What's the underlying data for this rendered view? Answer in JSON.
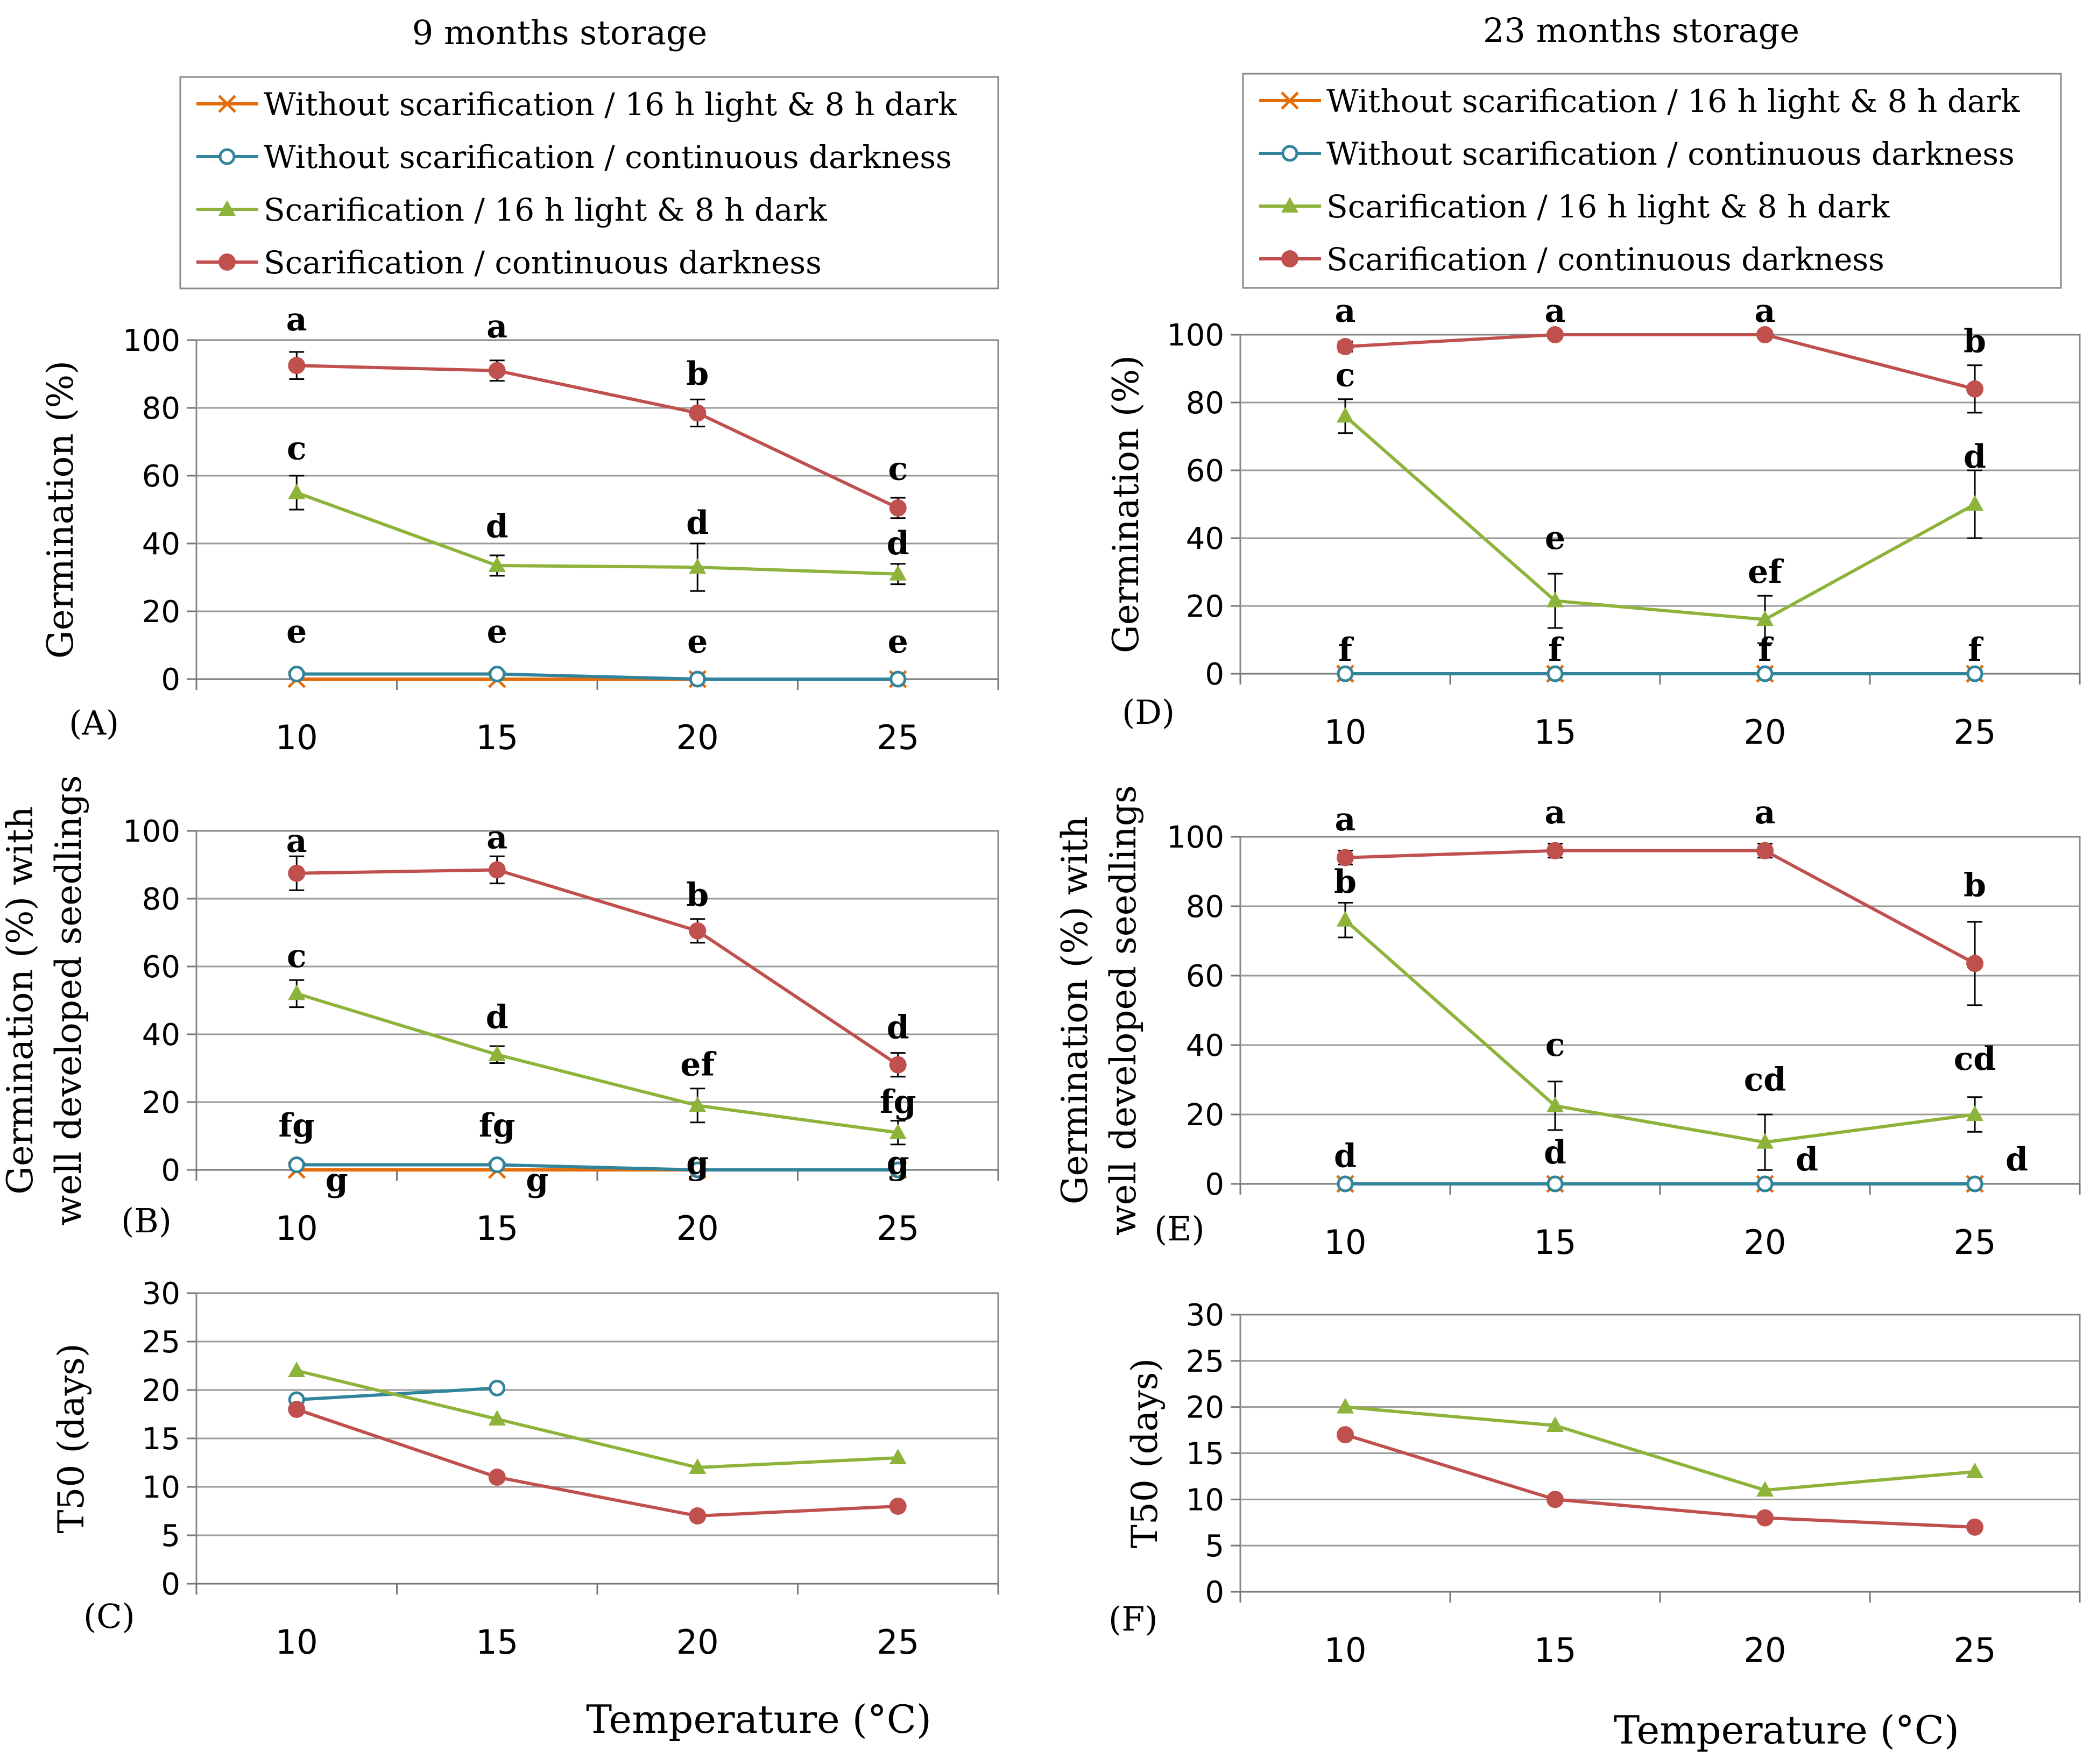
{
  "figure": {
    "left_column_title": "9 months storage",
    "right_column_title": "23 months storage",
    "x_title": "Temperature (°C)"
  },
  "legend": [
    {
      "key": "ws_light",
      "label": "Without scarification / 16 h light & 8 h dark",
      "color": "#E36C09",
      "marker": "cross"
    },
    {
      "key": "ws_dark",
      "label": "Without scarification / continuous darkness",
      "color": "#31849B",
      "marker": "open-circle"
    },
    {
      "key": "s_light",
      "label": "Scarification / 16 h light & 8 h dark",
      "color": "#8DB33A",
      "marker": "triangle"
    },
    {
      "key": "s_dark",
      "label": "Scarification / continuous darkness",
      "color": "#C0504D",
      "marker": "filled-circle"
    }
  ],
  "chart_data": [
    {
      "id": "A",
      "panel_label": "(A)",
      "type": "line",
      "categories": [
        "10",
        "15",
        "20",
        "25"
      ],
      "ylabel": "Germination (%)",
      "ylim": [
        0,
        100
      ],
      "yticks": [
        0,
        20,
        40,
        60,
        80,
        100
      ],
      "series": [
        {
          "key": "ws_light",
          "values": [
            0,
            0,
            0,
            0
          ],
          "errors": null
        },
        {
          "key": "ws_dark",
          "values": [
            1.5,
            1.5,
            0,
            0
          ],
          "errors": null
        },
        {
          "key": "s_light",
          "values": [
            55,
            33.5,
            33,
            31
          ],
          "errors": [
            5,
            3,
            7,
            3
          ]
        },
        {
          "key": "s_dark",
          "values": [
            92.5,
            91,
            78.5,
            50.5
          ],
          "errors": [
            4,
            3,
            4,
            3
          ]
        }
      ],
      "letters": [
        {
          "text": "a",
          "x": "10",
          "y": 106
        },
        {
          "text": "a",
          "x": "15",
          "y": 104
        },
        {
          "text": "b",
          "x": "20",
          "y": 90
        },
        {
          "text": "c",
          "x": "25",
          "y": 62
        },
        {
          "text": "c",
          "x": "10",
          "y": 68
        },
        {
          "text": "d",
          "x": "15",
          "y": 45
        },
        {
          "text": "d",
          "x": "20",
          "y": 46
        },
        {
          "text": "d",
          "x": "25",
          "y": 40
        },
        {
          "text": "e",
          "x": "10",
          "y": 14
        },
        {
          "text": "e",
          "x": "15",
          "y": 14
        },
        {
          "text": "e",
          "x": "20",
          "y": 11
        },
        {
          "text": "e",
          "x": "25",
          "y": 11
        }
      ]
    },
    {
      "id": "B",
      "panel_label": "(B)",
      "type": "line",
      "categories": [
        "10",
        "15",
        "20",
        "25"
      ],
      "ylabel": [
        "Germination (%) with",
        "well developed seedlings"
      ],
      "ylim": [
        0,
        100
      ],
      "yticks": [
        0,
        20,
        40,
        60,
        80,
        100
      ],
      "series": [
        {
          "key": "ws_light",
          "values": [
            0,
            0,
            0,
            0
          ],
          "errors": null
        },
        {
          "key": "ws_dark",
          "values": [
            1.5,
            1.5,
            0,
            0
          ],
          "errors": null
        },
        {
          "key": "s_light",
          "values": [
            52,
            34,
            19,
            11
          ],
          "errors": [
            4,
            2.5,
            5,
            3.5
          ]
        },
        {
          "key": "s_dark",
          "values": [
            87.5,
            88.5,
            70.5,
            31
          ],
          "errors": [
            5,
            4,
            3.5,
            3.5
          ]
        }
      ],
      "letters": [
        {
          "text": "a",
          "x": "10",
          "y": 97
        },
        {
          "text": "a",
          "x": "15",
          "y": 98
        },
        {
          "text": "b",
          "x": "20",
          "y": 81
        },
        {
          "text": "d",
          "x": "25",
          "y": 42
        },
        {
          "text": "c",
          "x": "10",
          "y": 63
        },
        {
          "text": "d",
          "x": "15",
          "y": 45
        },
        {
          "text": "ef",
          "x": "20",
          "y": 31
        },
        {
          "text": "fg",
          "x": "25",
          "y": 20
        },
        {
          "text": "fg",
          "x": "10",
          "y": 13
        },
        {
          "text": "fg",
          "x": "15",
          "y": 13
        },
        {
          "text": "g",
          "x": "20",
          "y": 2
        },
        {
          "text": "g",
          "x": "25",
          "y": 2
        },
        {
          "text": "g",
          "x": "10",
          "y": -3,
          "dx": 0.6
        },
        {
          "text": "g",
          "x": "15",
          "y": -3,
          "dx": 0.6
        }
      ]
    },
    {
      "id": "C",
      "panel_label": "(C)",
      "type": "line",
      "categories": [
        "10",
        "15",
        "20",
        "25"
      ],
      "ylabel": "T50 (days)",
      "ylim": [
        0,
        30
      ],
      "yticks": [
        0,
        5,
        10,
        15,
        20,
        25,
        30
      ],
      "series": [
        {
          "key": "ws_dark",
          "values": [
            19,
            20.2,
            null,
            null
          ],
          "errors": null
        },
        {
          "key": "s_light",
          "values": [
            22,
            17,
            12,
            13
          ],
          "errors": null
        },
        {
          "key": "s_dark",
          "values": [
            18,
            11,
            7,
            8
          ],
          "errors": null
        }
      ],
      "letters": []
    },
    {
      "id": "D",
      "panel_label": "(D)",
      "type": "line",
      "categories": [
        "10",
        "15",
        "20",
        "25"
      ],
      "ylabel": "Germination (%)",
      "ylim": [
        0,
        100
      ],
      "yticks": [
        0,
        20,
        40,
        60,
        80,
        100
      ],
      "series": [
        {
          "key": "ws_light",
          "values": [
            0,
            0,
            0,
            0
          ],
          "errors": null
        },
        {
          "key": "ws_dark",
          "values": [
            0,
            0,
            0,
            0
          ],
          "errors": null
        },
        {
          "key": "s_light",
          "values": [
            76,
            21.5,
            16,
            50
          ],
          "errors": [
            5,
            8,
            7,
            10
          ]
        },
        {
          "key": "s_dark",
          "values": [
            96.5,
            100,
            100,
            84
          ],
          "errors": [
            1.5,
            0,
            0,
            7
          ]
        }
      ],
      "letters": [
        {
          "text": "a",
          "x": "10",
          "y": 107
        },
        {
          "text": "a",
          "x": "15",
          "y": 107
        },
        {
          "text": "a",
          "x": "20",
          "y": 107
        },
        {
          "text": "b",
          "x": "25",
          "y": 98
        },
        {
          "text": "c",
          "x": "10",
          "y": 88
        },
        {
          "text": "e",
          "x": "15",
          "y": 40
        },
        {
          "text": "ef",
          "x": "20",
          "y": 30
        },
        {
          "text": "d",
          "x": "25",
          "y": 64
        },
        {
          "text": "f",
          "x": "10",
          "y": 7
        },
        {
          "text": "f",
          "x": "15",
          "y": 7
        },
        {
          "text": "f",
          "x": "20",
          "y": 7
        },
        {
          "text": "f",
          "x": "25",
          "y": 7
        }
      ]
    },
    {
      "id": "E",
      "panel_label": "(E)",
      "type": "line",
      "categories": [
        "10",
        "15",
        "20",
        "25"
      ],
      "ylabel": [
        "Germination (%) with",
        "well developed seedlings"
      ],
      "ylim": [
        0,
        100
      ],
      "yticks": [
        0,
        20,
        40,
        60,
        80,
        100
      ],
      "series": [
        {
          "key": "ws_light",
          "values": [
            0,
            0,
            0,
            0
          ],
          "errors": null
        },
        {
          "key": "ws_dark",
          "values": [
            0,
            0,
            0,
            0
          ],
          "errors": null
        },
        {
          "key": "s_light",
          "values": [
            76,
            22.5,
            12,
            20
          ],
          "errors": [
            5,
            7,
            8,
            5
          ]
        },
        {
          "key": "s_dark",
          "values": [
            94,
            96,
            96,
            63.5
          ],
          "errors": [
            2,
            2,
            2,
            12
          ]
        }
      ],
      "letters": [
        {
          "text": "a",
          "x": "10",
          "y": 105
        },
        {
          "text": "a",
          "x": "15",
          "y": 107
        },
        {
          "text": "a",
          "x": "20",
          "y": 107
        },
        {
          "text": "b",
          "x": "25",
          "y": 86
        },
        {
          "text": "b",
          "x": "10",
          "y": 87
        },
        {
          "text": "c",
          "x": "15",
          "y": 40
        },
        {
          "text": "cd",
          "x": "20",
          "y": 30
        },
        {
          "text": "cd",
          "x": "25",
          "y": 36
        },
        {
          "text": "d",
          "x": "10",
          "y": 8
        },
        {
          "text": "d",
          "x": "15",
          "y": 9
        },
        {
          "text": "d",
          "x": "20",
          "y": 7,
          "dx": 0.6
        },
        {
          "text": "d",
          "x": "25",
          "y": 7,
          "dx": 0.6
        }
      ]
    },
    {
      "id": "F",
      "panel_label": "(F)",
      "type": "line",
      "categories": [
        "10",
        "15",
        "20",
        "25"
      ],
      "ylabel": "T50 (days)",
      "ylim": [
        0,
        30
      ],
      "yticks": [
        0,
        5,
        10,
        15,
        20,
        25,
        30
      ],
      "series": [
        {
          "key": "s_light",
          "values": [
            20,
            18,
            11,
            13
          ],
          "errors": null
        },
        {
          "key": "s_dark",
          "values": [
            17,
            10,
            8,
            7
          ],
          "errors": null
        }
      ],
      "letters": []
    }
  ]
}
